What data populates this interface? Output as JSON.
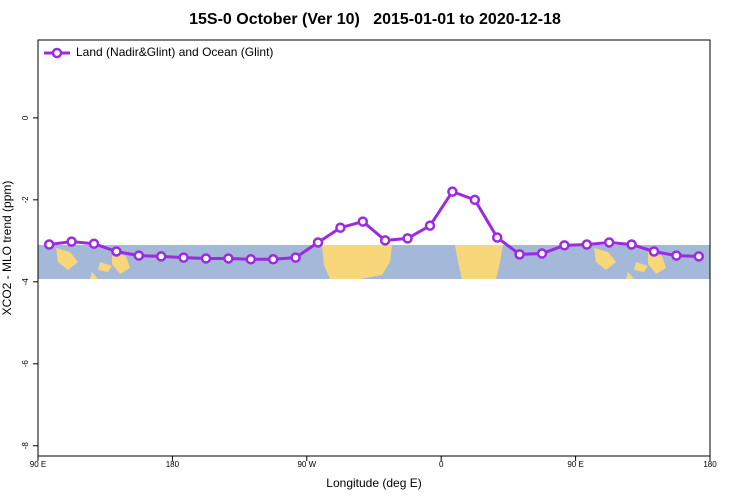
{
  "chart_data": {
    "type": "line",
    "title": "15S-0 October (Ver 10)   2015-01-01 to 2020-12-18",
    "x_label": "Longitude (deg E)",
    "y_label": "XCO2 - MLO trend (ppm)",
    "x": [
      97.5,
      112.5,
      127.5,
      142.5,
      157.5,
      172.5,
      187.5,
      202.5,
      217.5,
      232.5,
      247.5,
      262.5,
      277.5,
      292.5,
      307.5,
      322.5,
      337.5,
      352.5,
      367.5,
      382.5,
      397.5,
      412.5,
      427.5,
      442.5,
      457.5,
      472.5,
      487.5,
      502.5,
      517.5,
      532.5
    ],
    "series": [
      {
        "name": "Land (Nadir&Glint) and Ocean (Glint)",
        "color": "#9b2be0",
        "values": [
          -3.09,
          -3.02,
          -3.07,
          -3.26,
          -3.36,
          -3.38,
          -3.41,
          -3.43,
          -3.43,
          -3.45,
          -3.45,
          -3.41,
          -3.04,
          -2.68,
          -2.53,
          -2.99,
          -2.94,
          -2.63,
          -1.8,
          -2.0,
          -2.92,
          -3.33,
          -3.31,
          -3.11,
          -3.09,
          -3.04,
          -3.09,
          -3.26,
          -3.36,
          -3.38
        ]
      }
    ],
    "xlim": [
      90,
      540
    ],
    "xticks": [
      {
        "value": 90,
        "label": "90 E"
      },
      180,
      {
        "value": 270,
        "label": "90 W"
      },
      {
        "value": 360,
        "label": "0"
      },
      {
        "value": 450,
        "label": "90 E"
      },
      {
        "value": 540,
        "label": "180"
      }
    ],
    "ylim": [
      -8.25,
      1.9
    ],
    "yticks": [
      0,
      -2,
      -4,
      -6,
      -8
    ],
    "legend": "top-left"
  }
}
